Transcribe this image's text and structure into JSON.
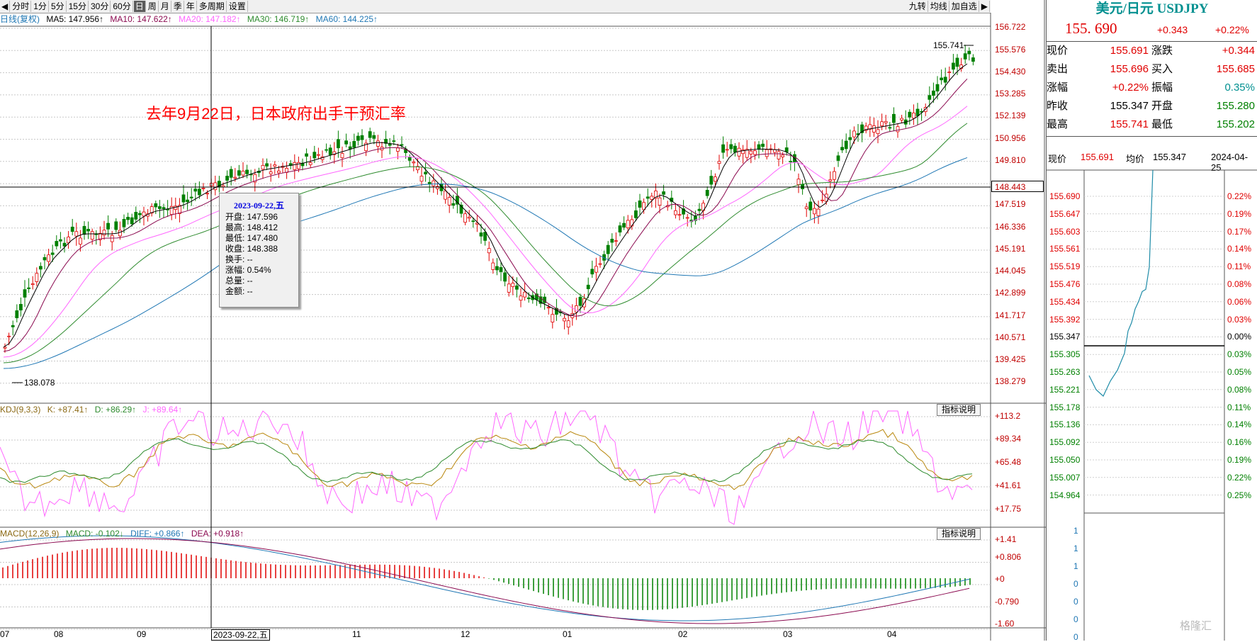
{
  "toolbar": {
    "left_arrow": "◀",
    "periods": [
      "分时",
      "1分",
      "5分",
      "15分",
      "30分",
      "60分",
      "日",
      "周",
      "月",
      "季",
      "年",
      "多周期",
      "设置"
    ],
    "active_period": "日",
    "right_buttons": [
      "九转",
      "均线",
      "加自选"
    ],
    "right_arrow": "▶"
  },
  "ma_header": {
    "name": "日线(复权)",
    "ma5": "MA5: 147.956↑",
    "ma10": "MA10: 147.622↑",
    "ma20": "MA20: 147.182↑",
    "ma30": "MA30: 146.719↑",
    "ma60": "MA60: 144.225↑"
  },
  "main_axis_labels": [
    "156.722",
    "155.576",
    "154.430",
    "153.285",
    "152.139",
    "150.956",
    "149.810",
    "148.443",
    "147.519",
    "146.336",
    "145.191",
    "144.045",
    "142.899",
    "141.717",
    "140.571",
    "139.425",
    "138.279"
  ],
  "crosshair_price": "148.443",
  "annotation": "去年9月22日，日本政府出手干预汇率",
  "high_marker": "155.741",
  "low_marker": "138.078",
  "tooltip": {
    "title": "2023-09-22,五",
    "rows": [
      "开盘: 147.596",
      "最高: 148.412",
      "最低: 147.480",
      "收盘: 148.388",
      "换手: --",
      "涨幅: 0.54%",
      "总量: --",
      "金额: --"
    ]
  },
  "kdj_header": {
    "name": "KDJ(9,3,3)",
    "k": "K: +87.41↑",
    "d": "D: +86.29↑",
    "j": "J: +89.64↑",
    "explain": "指标说明"
  },
  "kdj_axis_labels": [
    "+113.2",
    "+89.34",
    "+65.48",
    "+41.61",
    "+17.75"
  ],
  "macd_header": {
    "name": "MACD(12,26,9)",
    "macd": "MACD: -0.102↓",
    "diff": "DIFF: +0.866↑",
    "dea": "DEA: +0.918↑",
    "explain": "指标说明"
  },
  "macd_axis_labels": [
    "+1.41",
    "+0.806",
    "+0",
    "-0.790",
    "-1.60"
  ],
  "x_axis_labels": [
    "07",
    "08",
    "09",
    "2023-09-22,五",
    "11",
    "12",
    "01",
    "02",
    "03",
    "04"
  ],
  "quote": {
    "title": "美元/日元 USDJPY",
    "price": "155. 690",
    "change": "+0.343",
    "change_pct": "+0.22%",
    "rows": [
      {
        "l1": "现价",
        "v1": "155.691",
        "l2": "涨跌",
        "v2": "+0.344"
      },
      {
        "l1": "卖出",
        "v1": "155.696",
        "l2": "买入",
        "v2": "155.685"
      },
      {
        "l1": "涨幅",
        "v1": "+0.22%",
        "l2": "振幅",
        "v2": "0.35%"
      },
      {
        "l1": "昨收",
        "v1": "155.347",
        "l2": "开盘",
        "v2": "155.280"
      },
      {
        "l1": "最高",
        "v1": "155.741",
        "l2": "最低",
        "v2": "155.202"
      }
    ]
  },
  "intraday": {
    "now_label": "现价",
    "now_value": "155.691",
    "avg_label": "均价",
    "avg_value": "155.347",
    "date": "2024-04-25",
    "left_labels": [
      "155.690",
      "155.647",
      "155.603",
      "155.561",
      "155.519",
      "155.476",
      "155.434",
      "155.392",
      "155.347",
      "155.305",
      "155.263",
      "155.221",
      "155.178",
      "155.136",
      "155.092",
      "155.050",
      "155.007",
      "154.964"
    ],
    "right_labels": [
      "0.22%",
      "0.19%",
      "0.17%",
      "0.14%",
      "0.11%",
      "0.08%",
      "0.06%",
      "0.03%",
      "0.00%",
      "0.03%",
      "0.05%",
      "0.08%",
      "0.11%",
      "0.14%",
      "0.16%",
      "0.19%",
      "0.22%",
      "0.25%"
    ],
    "vol_labels": [
      "1",
      "1",
      "1",
      "0",
      "0",
      "0",
      "0"
    ]
  },
  "watermark": "格隆汇",
  "colors": {
    "up": "#e00000",
    "down": "#008000",
    "ma5": "#000000",
    "ma10": "#8b0a50",
    "ma20": "#ff66ff",
    "ma30": "#2e8b2e",
    "ma60": "#1f77b4"
  }
}
